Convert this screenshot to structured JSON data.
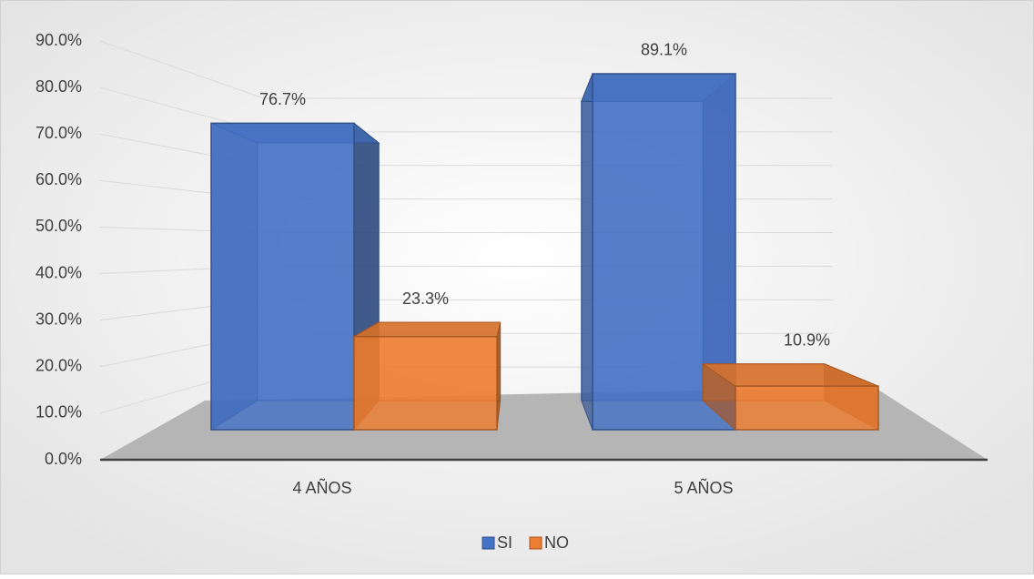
{
  "chart_data": {
    "type": "bar3d",
    "categories": [
      "4 AÑOS",
      "5 AÑOS"
    ],
    "series": [
      {
        "name": "SI",
        "color": "#4472c4",
        "values": [
          76.7,
          89.1
        ],
        "value_labels": [
          "76.7%",
          "89.1%"
        ]
      },
      {
        "name": "NO",
        "color": "#ed7d31",
        "values": [
          23.3,
          10.9
        ],
        "value_labels": [
          "23.3%",
          "10.9%"
        ]
      }
    ],
    "ylim": [
      0,
      90
    ],
    "yticks": [
      {
        "value": 0,
        "label": "0.0%"
      },
      {
        "value": 10,
        "label": "10.0%"
      },
      {
        "value": 20,
        "label": "20.0%"
      },
      {
        "value": 30,
        "label": "30.0%"
      },
      {
        "value": 40,
        "label": "40.0%"
      },
      {
        "value": 50,
        "label": "50.0%"
      },
      {
        "value": 60,
        "label": "60.0%"
      },
      {
        "value": 70,
        "label": "70.0%"
      },
      {
        "value": 80,
        "label": "80.0%"
      },
      {
        "value": 90,
        "label": "90.0%"
      }
    ],
    "grid": true,
    "legend": "bottom"
  }
}
